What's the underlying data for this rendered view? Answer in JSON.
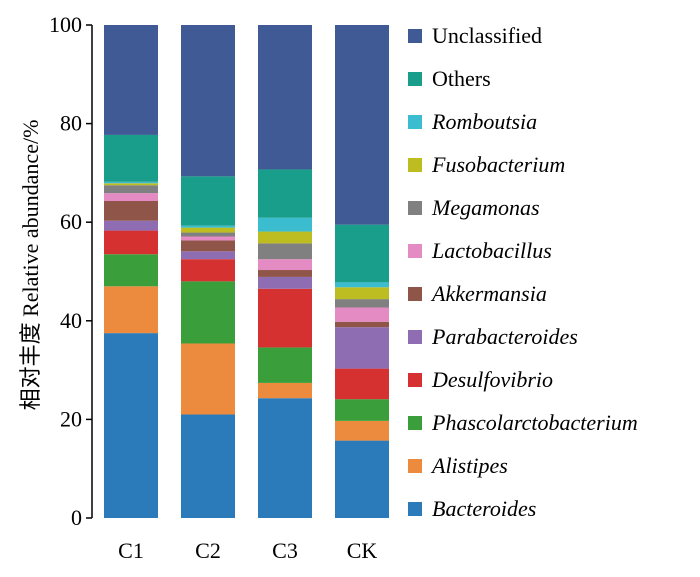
{
  "chart_data": {
    "type": "bar",
    "stacked": true,
    "ylabel": "相对丰度  Relative abundance/%",
    "ylim": [
      0,
      100
    ],
    "yticks": [
      "0",
      "20",
      "40",
      "60",
      "80",
      "100"
    ],
    "categories": [
      "C1",
      "C2",
      "C3",
      "CK"
    ],
    "series": [
      {
        "name": "Bacteroides",
        "italic": true,
        "color": "#2b7bba",
        "values": [
          37.5,
          21.0,
          24.3,
          15.7
        ]
      },
      {
        "name": "Alistipes",
        "italic": true,
        "color": "#ec8a3e",
        "values": [
          9.5,
          14.4,
          3.1,
          4.0
        ]
      },
      {
        "name": "Phascolarctobacterium",
        "italic": true,
        "color": "#3a9f3a",
        "values": [
          6.5,
          12.6,
          7.2,
          4.4
        ]
      },
      {
        "name": "Desulfovibrio",
        "italic": true,
        "color": "#d63131",
        "values": [
          4.8,
          4.5,
          11.9,
          6.2
        ]
      },
      {
        "name": "Parabacteroides",
        "italic": true,
        "color": "#8f6db3",
        "values": [
          2.0,
          1.6,
          2.4,
          8.4
        ]
      },
      {
        "name": "Akkermansia",
        "italic": true,
        "color": "#8e5548",
        "values": [
          4.0,
          2.2,
          1.4,
          1.1
        ]
      },
      {
        "name": "Lactobacillus",
        "italic": true,
        "color": "#e48bc3",
        "values": [
          1.6,
          0.8,
          2.2,
          2.9
        ]
      },
      {
        "name": "Megamonas",
        "italic": true,
        "color": "#808080",
        "values": [
          1.6,
          0.8,
          3.2,
          1.7
        ]
      },
      {
        "name": "Fusobacterium",
        "italic": true,
        "color": "#bdbd22",
        "values": [
          0.4,
          1.0,
          2.4,
          2.4
        ]
      },
      {
        "name": "Romboutsia",
        "italic": true,
        "color": "#3cbccf",
        "values": [
          0.3,
          0.4,
          2.8,
          1.0
        ]
      },
      {
        "name": "Others",
        "italic": false,
        "color": "#1a9e8c",
        "values": [
          9.5,
          10.0,
          9.8,
          11.7
        ]
      },
      {
        "name": "Unclassified",
        "italic": false,
        "color": "#3f5a94",
        "values": [
          22.3,
          30.7,
          29.3,
          40.5
        ]
      }
    ]
  }
}
